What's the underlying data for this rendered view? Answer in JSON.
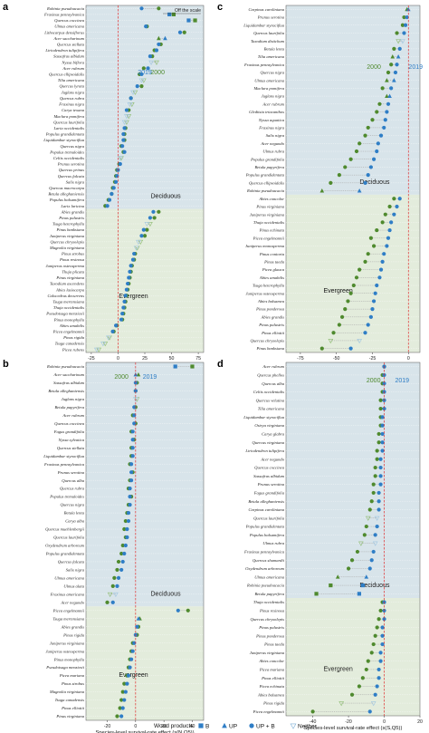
{
  "colors": {
    "b": "#2f7ec6",
    "up": "#4f8a2e",
    "bg_deciduous": "#d8e4ea",
    "bg_evergreen": "#e3ecdc",
    "zero_line": "#e03030",
    "triangle_outline": "#9fc5e0"
  },
  "legend": {
    "title": "Wood products",
    "items": [
      {
        "label": "B",
        "shape": "square",
        "color": "#2f7ec6"
      },
      {
        "label": "UP",
        "shape": "triangle",
        "color": "#2f7ec6"
      },
      {
        "label": "UP + B",
        "shape": "circle",
        "color": "#2f7ec6"
      },
      {
        "label": "Neither",
        "shape": "triangle-down-open",
        "color": "#7fb0d6"
      }
    ]
  },
  "groups": {
    "deciduous": "Deciduous",
    "evergreen": "Evergreen"
  },
  "years": {
    "y2000": "2000",
    "y2019": "2019"
  },
  "chart_data": [
    {
      "panel": "a",
      "type": "scatter",
      "xlabel": "Species-level growth-rate effect (g(N,Q5))",
      "xlim": [
        -30,
        80
      ],
      "xticks": [
        -25,
        0,
        25,
        50,
        75
      ],
      "zero_line": 0,
      "annotation": "Off the scale",
      "legend_2019_at": 25,
      "legend_2000_at": 37,
      "groups": [
        {
          "name": "Deciduous",
          "count": 42
        },
        {
          "name": "Evergreen",
          "count": 34
        }
      ],
      "species": [
        "Robinia pseudoacacia",
        "Fraxinus pennsylvanica",
        "Quercus coccinea",
        "Ulmus americana",
        "Lithocarpus densiflorus",
        "Acer saccharinum",
        "Quercus stellata",
        "Liriodendron tulipifera",
        "Sassafras albidum",
        "Nyssa biflora",
        "Acer rubrum",
        "Quercus ellipsoidalis",
        "Tilia americana",
        "Quercus lyrata",
        "Juglans nigra",
        "Quercus rubra",
        "Fraxinus nigra",
        "Carya texana",
        "Maclura pomifera",
        "Quercus laurifolia",
        "Laria occidentalis",
        "Populus grandidentata",
        "Liquidambar styraciflua",
        "Quercus nigra",
        "Populus tremuloides",
        "Celtis occidentalis",
        "Prunus serotina",
        "Quercus prinus",
        "Quercus falcata",
        "Salix nigra",
        "Quercus macrocarpa",
        "Betula alleghaniensis",
        "Populus balsamifera",
        "Larix laricina",
        "Abies grandis",
        "Pinus palustris",
        "Tsuga heterophylla",
        "Pinus banksiana",
        "Juniperus virginiana",
        "Quercus chrysolepis",
        "Magnolia virginiana",
        "Pinus strobus",
        "Pinus resinosa",
        "Juniperus osteosperma",
        "Thuja plicata",
        "Pinus virginiana",
        "Taxodium ascendens",
        "Abies lasiocarpa",
        "Calocedrus decurrens",
        "Tsuga mertensiana",
        "Thuja occidentalis",
        "Pseudotsuga menziesii",
        "Pinus monophylla",
        "Abies amabilis",
        "Picea engelmannii",
        "Pinus rigida",
        "Tsuga canadensis",
        "Picea rubens"
      ],
      "dec_count": 34,
      "v2019": [
        22,
        48,
        66,
        26,
        58,
        44,
        38,
        36,
        30,
        31,
        28,
        22,
        22,
        18,
        14,
        12,
        11,
        8,
        8,
        6,
        6,
        5,
        5,
        4,
        6,
        2,
        2,
        0,
        -1,
        -2,
        -4,
        -6,
        -8,
        -10,
        33,
        30,
        27,
        24,
        22,
        19,
        17,
        15,
        14,
        12,
        11,
        10,
        9,
        8,
        7,
        6,
        5,
        4,
        3,
        -2,
        -5,
        -9,
        -14,
        -20
      ],
      "v2000": [
        38,
        52,
        72,
        27,
        62,
        38,
        40,
        34,
        32,
        36,
        24,
        20,
        24,
        22,
        16,
        12,
        13,
        10,
        10,
        8,
        7,
        6,
        6,
        3,
        5,
        3,
        1,
        -1,
        -2,
        -3,
        -5,
        -6,
        -9,
        -12,
        38,
        34,
        30,
        27,
        25,
        21,
        18,
        16,
        15,
        13,
        12,
        11,
        10,
        9,
        8,
        7,
        6,
        5,
        4,
        -1,
        -4,
        -8,
        -12,
        -18
      ],
      "marker": [
        "circle",
        "square",
        "square",
        "circle",
        "circle",
        "triangle",
        "circle",
        "circle",
        "circle",
        "tri_down",
        "circle",
        "circle",
        "tri_down",
        "circle",
        "tri_down",
        "circle",
        "tri_down",
        "circle",
        "tri_down",
        "tri_down",
        "circle",
        "circle",
        "circle",
        "circle",
        "circle",
        "tri_down",
        "circle",
        "circle",
        "circle",
        "circle",
        "circle",
        "circle",
        "circle",
        "circle",
        "circle",
        "circle",
        "tri_down",
        "circle",
        "circle",
        "tri_down",
        "tri_down",
        "circle",
        "circle",
        "circle",
        "circle",
        "circle",
        "circle",
        "circle",
        "circle",
        "circle",
        "circle",
        "circle",
        "circle",
        "circle",
        "circle",
        "tri_down",
        "tri_down",
        "tri_down"
      ]
    },
    {
      "panel": "c",
      "type": "scatter",
      "xlabel": "Species-level growth-rate effect (g(S,Q5))",
      "xlim": [
        -85,
        8
      ],
      "xticks": [
        -75,
        -50,
        -25,
        0
      ],
      "zero_line": 0,
      "legend_2000_at": -24,
      "legend_2019_at": 5,
      "groups": [
        {
          "name": "Deciduous",
          "count": 40
        },
        {
          "name": "Evergreen",
          "count": 29
        }
      ],
      "species": [
        "Carpinus caroliniana",
        "Prunus serotina",
        "Liquidambar styraciflua",
        "Quercus laurifolia",
        "Taxodium distichum",
        "Betula lenta",
        "Tilia americana",
        "Fraxinus pennsylvanica",
        "Quercus nigra",
        "Ulmus americana",
        "Maclura pomifera",
        "Juglans nigra",
        "Acer rubrum",
        "Gleditsia triacanthos",
        "Nyssa aquatica",
        "Fraxinus nigra",
        "Salix nigra",
        "Acer negundo",
        "Ulmus rubra",
        "Populus grandifolia",
        "Betula papyrifera",
        "Populus grandidentata",
        "Quercus ellipsoidalis",
        "Robinia pseudoacacia",
        "Abies concolor",
        "Pinus virginiana",
        "Juniperus virginiana",
        "Thuja occidentalis",
        "Pinus echinata",
        "Picea engelmannii",
        "Juniperus monosperma",
        "Pinus contorta",
        "Pinus taeda",
        "Picea glauca",
        "Abies amabilis",
        "Tsuga heterophylla",
        "Juniperus osteosperma",
        "Abies balsamea",
        "Pinus ponderosa",
        "Abies grandis",
        "Pinus palustris",
        "Pinus elliottii",
        "Quercus chrysolepis",
        "Pinus banksiana"
      ],
      "dec_count": 24,
      "v2019": [
        0,
        -1,
        -2,
        -3,
        -4,
        -6,
        -7,
        -8,
        -9,
        -10,
        -12,
        -13,
        -14,
        -15,
        -16,
        -17,
        -19,
        -21,
        -22,
        -24,
        -26,
        -28,
        -30,
        -34,
        -6,
        -8,
        -10,
        -12,
        -13,
        -14,
        -15,
        -17,
        -18,
        -19,
        -20,
        -22,
        -23,
        -24,
        -25,
        -26,
        -28,
        -30,
        -34,
        -40
      ],
      "v2000": [
        -1,
        -3,
        -4,
        -8,
        -7,
        -10,
        -11,
        -12,
        -14,
        -15,
        -18,
        -15,
        -20,
        -22,
        -25,
        -28,
        -30,
        -34,
        -36,
        -40,
        -44,
        -48,
        -54,
        -60,
        -10,
        -13,
        -16,
        -18,
        -22,
        -26,
        -24,
        -28,
        -30,
        -34,
        -36,
        -38,
        -40,
        -42,
        -44,
        -46,
        -48,
        -52,
        -54,
        -60
      ],
      "marker": [
        "triangle",
        "circle",
        "circle",
        "circle",
        "tri_down",
        "circle",
        "triangle",
        "circle",
        "circle",
        "triangle",
        "circle",
        "triangle",
        "circle",
        "circle",
        "circle",
        "circle",
        "circle",
        "circle",
        "circle",
        "circle",
        "circle",
        "circle",
        "circle",
        "triangle",
        "circle",
        "circle",
        "circle",
        "circle",
        "circle",
        "circle",
        "circle",
        "circle",
        "circle",
        "circle",
        "circle",
        "circle",
        "circle",
        "circle",
        "circle",
        "circle",
        "circle",
        "circle",
        "tri_down",
        "circle"
      ]
    },
    {
      "panel": "b",
      "type": "scatter",
      "xlabel": "Species-level survival-rate effect (s(N,Q5))",
      "xlim": [
        -35,
        48
      ],
      "xticks": [
        -20,
        0,
        20,
        40
      ],
      "zero_line": 0,
      "legend_2000_at": -10,
      "legend_2019_at": 10,
      "groups": [
        {
          "name": "Deciduous",
          "count": 42
        },
        {
          "name": "Evergreen",
          "count": 32
        }
      ],
      "species": [
        "Robinia pseudoacacia",
        "Acer saccharinum",
        "Sassafras albidum",
        "Betula alleghaniensis",
        "Juglans nigra",
        "Betula papyrifera",
        "Acer rubrum",
        "Quercus coccinea",
        "Fagus grandifolia",
        "Nyssa sylvatica",
        "Quercus stellata",
        "Liquidambar styraciflua",
        "Fraxinus pennsylvanica",
        "Prunus serotina",
        "Quercus alba",
        "Quercus rubra",
        "Populus tremuloides",
        "Quercus nigra",
        "Betula lenta",
        "Carya alba",
        "Quercus muehlenbergii",
        "Quercus laurifolia",
        "Oxydendrum arboreum",
        "Populus grandidentata",
        "Quercus falcata",
        "Salix nigra",
        "Ulmus americana",
        "Ulmus alata",
        "Fraxinus americana",
        "Acer negundo",
        "Picea engelmannii",
        "Tsuga mertensiana",
        "Abies grandis",
        "Pinus rigida",
        "Juniperus virginiana",
        "Juniperus osteosperma",
        "Pinus monophylla",
        "Pseudotsuga menziesii",
        "Picea mariana",
        "Pinus strobus",
        "Magnolia virginiana",
        "Tsuga canadensis",
        "Pinus elliottii",
        "Pinus virginiana"
      ],
      "dec_count": 30,
      "v2019": [
        28,
        0,
        0,
        0,
        0,
        -1,
        -1,
        -1,
        -2,
        -2,
        -2,
        -2,
        -3,
        -3,
        -3,
        -4,
        -4,
        -4,
        -5,
        -5,
        -6,
        -6,
        -7,
        -8,
        -9,
        -10,
        -12,
        -13,
        -14,
        -16,
        30,
        2,
        1,
        0,
        -1,
        -2,
        -3,
        -4,
        -5,
        -6,
        -7,
        -8,
        -9,
        -10
      ],
      "v2000": [
        40,
        2,
        1,
        0,
        1,
        0,
        -2,
        0,
        -3,
        -1,
        -3,
        -3,
        -4,
        -2,
        -4,
        -5,
        -3,
        -5,
        -6,
        -7,
        -8,
        -7,
        -9,
        -10,
        -12,
        -13,
        -15,
        -16,
        -18,
        -20,
        37,
        3,
        2,
        1,
        -2,
        -3,
        -4,
        -5,
        -6,
        -8,
        -9,
        -10,
        -11,
        -13
      ],
      "marker": [
        "square",
        "triangle",
        "circle",
        "circle",
        "tri_down",
        "circle",
        "circle",
        "circle",
        "circle",
        "circle",
        "circle",
        "circle",
        "circle",
        "circle",
        "circle",
        "circle",
        "circle",
        "circle",
        "circle",
        "circle",
        "circle",
        "circle",
        "circle",
        "circle",
        "circle",
        "circle",
        "circle",
        "circle",
        "tri_down",
        "circle",
        "circle",
        "triangle",
        "circle",
        "circle",
        "circle",
        "circle",
        "circle",
        "circle",
        "circle",
        "circle",
        "circle",
        "circle",
        "circle",
        "circle"
      ]
    },
    {
      "panel": "d",
      "type": "scatter",
      "xlabel": "Species-level survival-rate effect (s(S,Q5))",
      "xlim": [
        -55,
        20
      ],
      "xticks": [
        -40,
        -20,
        0,
        20
      ],
      "zero_line": 0,
      "legend_2000_at": -6,
      "legend_2019_at": 10,
      "groups": [
        {
          "name": "Deciduous",
          "count": 45
        },
        {
          "name": "Evergreen",
          "count": 27
        }
      ],
      "species": [
        "Acer rubrum",
        "Quercus phellos",
        "Quercus alba",
        "Celtis occidentalis",
        "Quercus velutina",
        "Tilia americana",
        "Liquidambar styraciflua",
        "Ostrya virginiana",
        "Carya glabra",
        "Quercus virginiana",
        "Liriodendron tulipifera",
        "Acer negundo",
        "Quercus coccinea",
        "Sassafras albidum",
        "Prunus serotina",
        "Fagus grandifolia",
        "Betula alleghaniensis",
        "Carpinus caroliniana",
        "Quercus laurifolia",
        "Populus grandidentata",
        "Populus balsamifera",
        "Ulmus rubra",
        "Fraxinus pennsylvanica",
        "Quercus shumardii",
        "Oxydendrum arboreum",
        "Ulmus americana",
        "Robinia pseudoacacia",
        "Betula papyrifera",
        "Thuja occidentalis",
        "Pinus resinosa",
        "Quercus chrysolepis",
        "Pinus palustris",
        "Pinus ponderosa",
        "Pinus taeda",
        "Juniperus virginiana",
        "Abies concolor",
        "Picea mariana",
        "Pinus elliottii",
        "Picea echinata",
        "Abies balsamea",
        "Pinus rigida",
        "Picea engelmannii"
      ],
      "dec_count": 28,
      "v2019": [
        0,
        0,
        0,
        0,
        0,
        0,
        -1,
        -1,
        -1,
        -1,
        -1,
        -2,
        -2,
        -2,
        -2,
        -3,
        -3,
        -3,
        -4,
        -4,
        -5,
        -5,
        -6,
        -7,
        -8,
        -10,
        -12,
        -14,
        0,
        0,
        0,
        -1,
        -1,
        -1,
        -2,
        -2,
        -3,
        -3,
        -4,
        -5,
        -6,
        -8
      ],
      "v2000": [
        0,
        -1,
        -1,
        -1,
        -2,
        -2,
        -2,
        -2,
        -3,
        -3,
        -4,
        -4,
        -5,
        -5,
        -6,
        -6,
        -7,
        -8,
        -9,
        -10,
        -11,
        -13,
        -15,
        -18,
        -20,
        -26,
        -30,
        -38,
        -1,
        -2,
        -3,
        -4,
        -5,
        -6,
        -7,
        -9,
        -10,
        -12,
        -14,
        -18,
        -24,
        -40
      ],
      "marker": [
        "circle",
        "circle",
        "circle",
        "circle",
        "circle",
        "circle",
        "circle",
        "circle",
        "circle",
        "circle",
        "circle",
        "circle",
        "circle",
        "circle",
        "circle",
        "circle",
        "circle",
        "circle",
        "tri_down",
        "circle",
        "circle",
        "tri_down",
        "circle",
        "circle",
        "circle",
        "triangle",
        "square",
        "square",
        "circle",
        "circle",
        "circle",
        "circle",
        "circle",
        "circle",
        "circle",
        "circle",
        "circle",
        "circle",
        "circle",
        "circle",
        "tri_down",
        "circle"
      ]
    }
  ]
}
